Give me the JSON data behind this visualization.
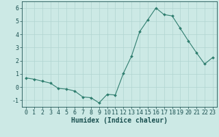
{
  "x": [
    0,
    1,
    2,
    3,
    4,
    5,
    6,
    7,
    8,
    9,
    10,
    11,
    12,
    13,
    14,
    15,
    16,
    17,
    18,
    19,
    20,
    21,
    22,
    23
  ],
  "y": [
    0.7,
    0.6,
    0.45,
    0.3,
    -0.1,
    -0.15,
    -0.3,
    -0.75,
    -0.8,
    -1.2,
    -0.55,
    -0.6,
    1.05,
    2.35,
    4.2,
    5.1,
    6.0,
    5.5,
    5.4,
    4.45,
    3.5,
    2.6,
    1.75,
    2.25
  ],
  "line_color": "#2e7d6e",
  "marker": "D",
  "marker_size": 2.0,
  "bg_color": "#cce9e5",
  "grid_color": "#b0d4d0",
  "axis_color": "#1a5050",
  "xlabel": "Humidex (Indice chaleur)",
  "xlim": [
    -0.5,
    23.5
  ],
  "ylim": [
    -1.5,
    6.5
  ],
  "yticks": [
    -1,
    0,
    1,
    2,
    3,
    4,
    5,
    6
  ],
  "xticks": [
    0,
    1,
    2,
    3,
    4,
    5,
    6,
    7,
    8,
    9,
    10,
    11,
    12,
    13,
    14,
    15,
    16,
    17,
    18,
    19,
    20,
    21,
    22,
    23
  ],
  "font_size": 6.0,
  "xlabel_fontsize": 7.0,
  "lw": 0.8
}
